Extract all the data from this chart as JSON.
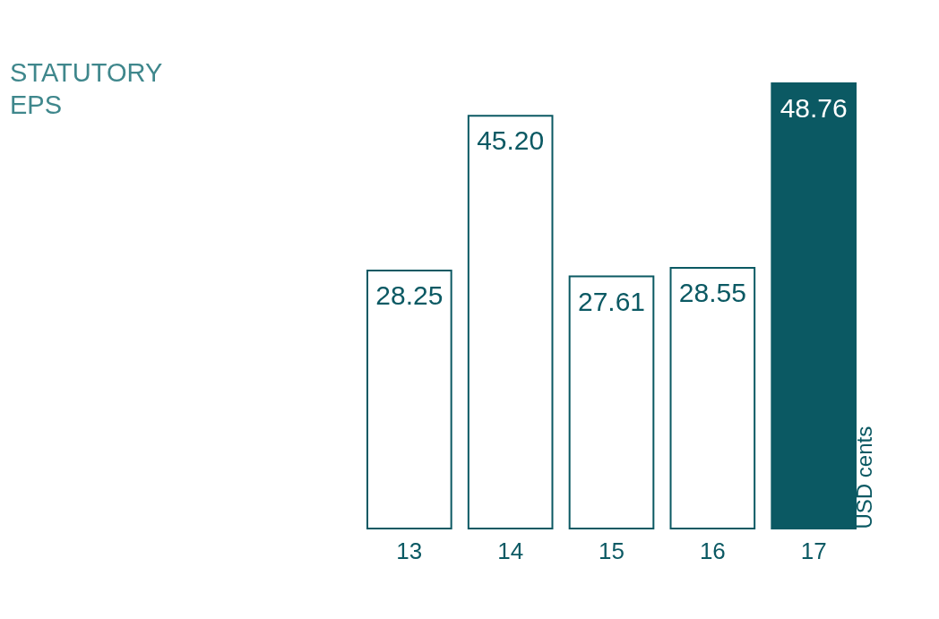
{
  "chart_data": {
    "type": "bar",
    "title": "STATUTORY\nEPS",
    "ylabel": "USD cents",
    "categories": [
      "13",
      "14",
      "15",
      "16",
      "17"
    ],
    "values": [
      28.25,
      45.2,
      27.61,
      28.55,
      48.76
    ],
    "value_labels": [
      "28.25",
      "45.20",
      "27.61",
      "28.55",
      "48.76"
    ],
    "color": "#0b5963",
    "colors": [
      "#ffffff",
      "#ffffff",
      "#ffffff",
      "#ffffff",
      "#0b5963"
    ],
    "tick_labels": "x",
    "grid": false
  }
}
